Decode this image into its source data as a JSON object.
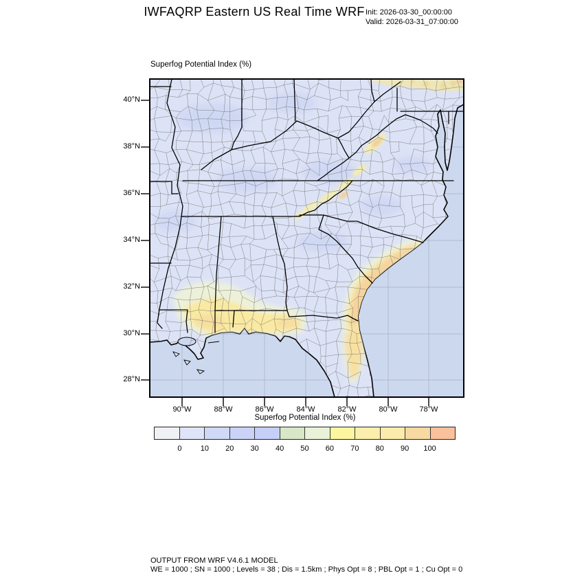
{
  "header": {
    "title": "IWFAQRP Eastern US Real Time WRF",
    "init": "Init: 2026-03-30_00:00:00",
    "valid": "Valid: 2026-03-31_07:00:00"
  },
  "map": {
    "field_title": "Superfog Potential Index   (%)",
    "lat_ticks": [
      "40°N",
      "38°N",
      "36°N",
      "34°N",
      "32°N",
      "30°N",
      "28°N"
    ],
    "lon_ticks": [
      "90°W",
      "88°W",
      "86°W",
      "84°W",
      "82°W",
      "80°W",
      "78°W"
    ]
  },
  "colorbar": {
    "title": "Superfog Potential Index  (%)",
    "tick_labels": [
      "0",
      "10",
      "20",
      "30",
      "40",
      "50",
      "60",
      "70",
      "80",
      "90",
      "100"
    ],
    "colors": [
      "#eff1f5",
      "#dfe5f8",
      "#cfd8f7",
      "#cad3f7",
      "#c5cff7",
      "#d8e7c6",
      "#e9f2d8",
      "#fbf69f",
      "#fceeac",
      "#fcebaa",
      "#f8d9a2",
      "#fbc09c"
    ]
  },
  "footer": {
    "line1": "OUTPUT FROM WRF V4.6.1 MODEL",
    "line2": "WE = 1000 ; SN = 1000 ; Levels = 38 ; Dis = 1.5km ; Phys Opt = 8 ; PBL Opt = 1 ; Cu Opt = 0"
  },
  "theme": {
    "land": "#dde3f6",
    "ocean": "#ccd8ee",
    "graticule": "#a6b0c6",
    "county_line": "#6b6b6b",
    "state_line": "#000000",
    "shade_pale": "#eef3d6",
    "shade_yellow": "#f9e9a2",
    "shade_orange": "#f5d49c",
    "shade_salmon": "#f0c09c"
  }
}
